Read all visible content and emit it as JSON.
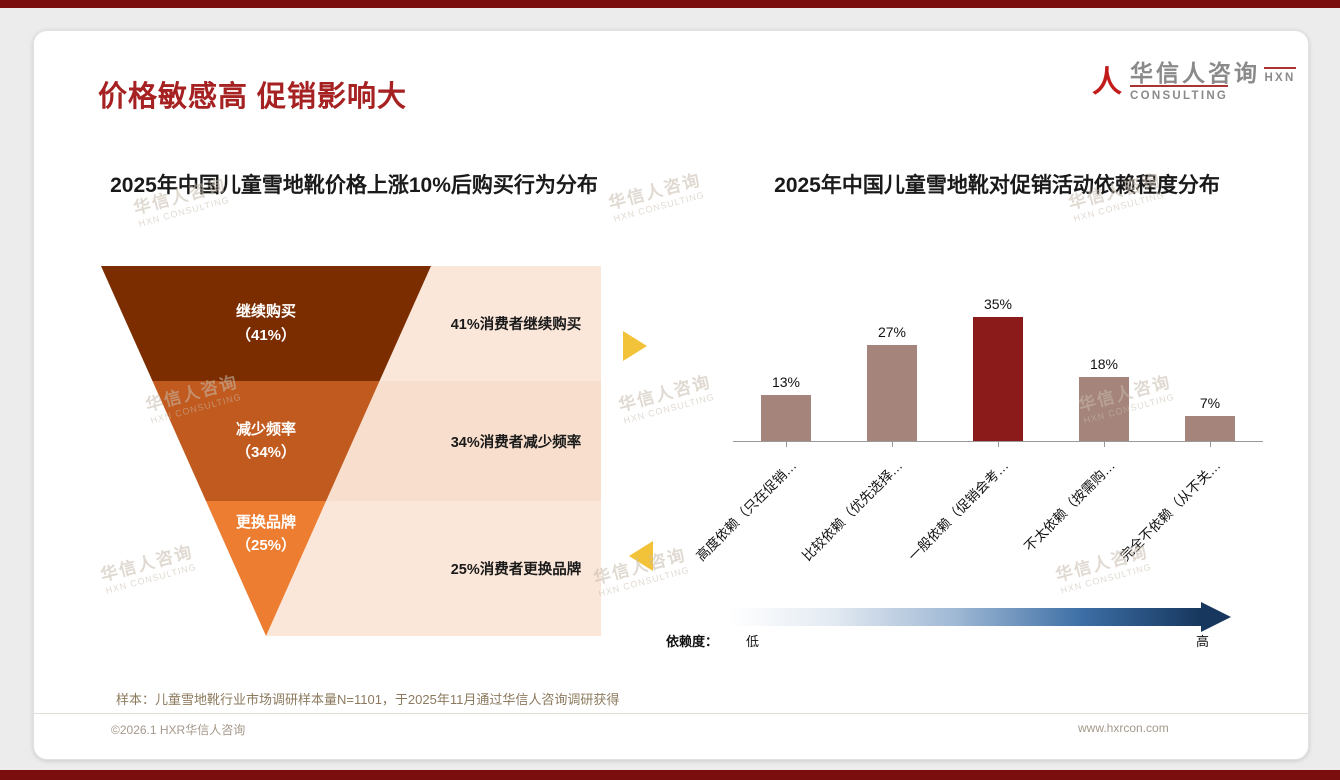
{
  "page": {
    "title": "价格敏感高 促销影响大",
    "logo": {
      "icon": "person-icon",
      "name": "华信人咨询",
      "subtitle": "HXN CONSULTING"
    },
    "watermark": {
      "line1": "华信人咨询",
      "line2": "HXN CONSULTING"
    },
    "sample_note": "样本：儿童雪地靴行业市场调研样本量N=1101，于2025年11月通过华信人咨询调研获得",
    "footer": {
      "copyright": "©2026.1 HXR华信人咨询",
      "website": "www.hxrcon.com"
    }
  },
  "colors": {
    "accent_red": "#A62121",
    "band_maroon": "#7A0D0D",
    "funnel": [
      "#7C2D00",
      "#C15A1E",
      "#ED7D31"
    ],
    "annotation_bg": [
      "#FBE7DA",
      "#F8DECC",
      "#FBE7DA"
    ],
    "bar": "#A5847B",
    "bar_highlight": "#8B1A1A",
    "arrow_yellow": "#F2C238",
    "gradient_start": "#FFFFFF",
    "gradient_end": "#17375E"
  },
  "chart_data": [
    {
      "type": "funnel",
      "title": "2025年中国儿童雪地靴价格上涨10%后购买行为分布",
      "categories": [
        "继续购买",
        "减少频率",
        "更换品牌"
      ],
      "values": [
        41,
        34,
        25
      ],
      "unit": "%",
      "segments": [
        {
          "label": "继续购买",
          "pct": "（41%）",
          "annotation": "41%消费者继续购买"
        },
        {
          "label": "减少频率",
          "pct": "（34%）",
          "annotation": "34%消费者减少频率"
        },
        {
          "label": "更换品牌",
          "pct": "（25%）",
          "annotation": "25%消费者更换品牌"
        }
      ]
    },
    {
      "type": "bar",
      "title": "2025年中国儿童雪地靴对促销活动依赖程度分布",
      "categories": [
        "高度依赖（只在促销…",
        "比较依赖（优先选择…",
        "一般依赖（促销会考…",
        "不太依赖（按需购…",
        "完全不依赖（从不关…"
      ],
      "values": [
        13,
        27,
        35,
        18,
        7
      ],
      "value_labels": [
        "13%",
        "27%",
        "35%",
        "18%",
        "7%"
      ],
      "highlight_index": 2,
      "ylim": [
        0,
        40
      ],
      "grid": false,
      "legend_position": "none",
      "dependency_axis": {
        "label": "依赖度：",
        "low": "低",
        "high": "高"
      }
    }
  ]
}
